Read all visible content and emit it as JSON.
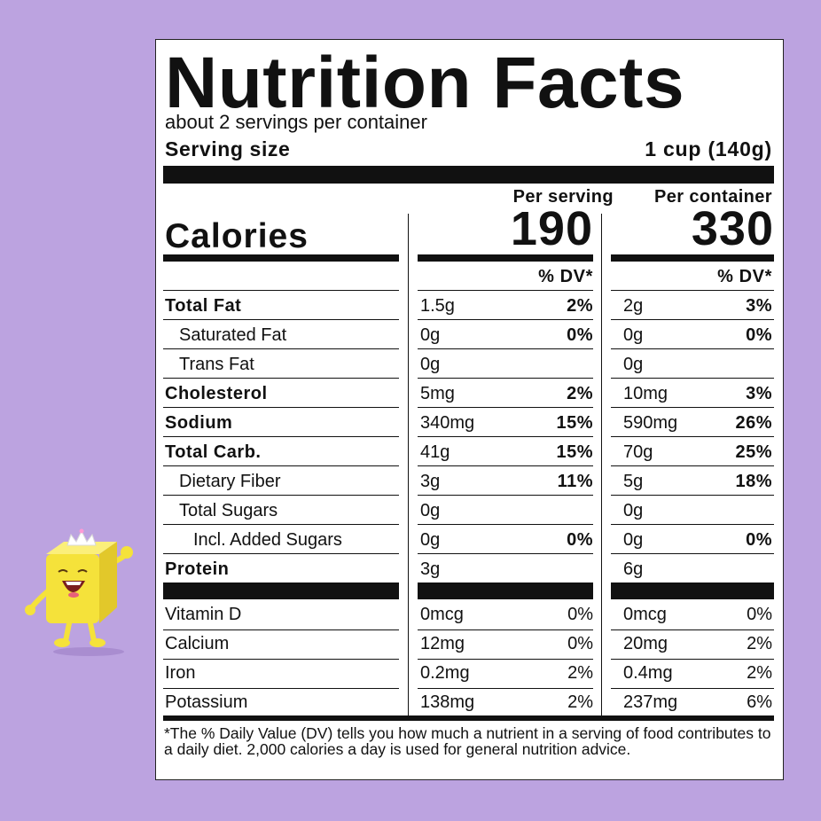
{
  "title": "Nutrition Facts",
  "servings_per_container": "about 2 servings per container",
  "serving_size": {
    "label": "Serving size",
    "value": "1 cup (140g)"
  },
  "columns": {
    "per_serving": "Per serving",
    "per_container": "Per container"
  },
  "calories": {
    "label": "Calories",
    "per_serving": "190",
    "per_container": "330"
  },
  "dv_header": "% DV*",
  "nutrients": [
    {
      "name": "Total Fat",
      "bold": true,
      "indent": 0,
      "s_amt": "1.5g",
      "s_dv": "2%",
      "c_amt": "2g",
      "c_dv": "3%"
    },
    {
      "name": "Saturated Fat",
      "bold": false,
      "indent": 1,
      "s_amt": "0g",
      "s_dv": "0%",
      "c_amt": "0g",
      "c_dv": "0%"
    },
    {
      "name": "Trans Fat",
      "bold": false,
      "indent": 1,
      "s_amt": "0g",
      "s_dv": "",
      "c_amt": "0g",
      "c_dv": ""
    },
    {
      "name": "Cholesterol",
      "bold": true,
      "indent": 0,
      "s_amt": "5mg",
      "s_dv": "2%",
      "c_amt": "10mg",
      "c_dv": "3%"
    },
    {
      "name": "Sodium",
      "bold": true,
      "indent": 0,
      "s_amt": "340mg",
      "s_dv": "15%",
      "c_amt": "590mg",
      "c_dv": "26%"
    },
    {
      "name": "Total Carb.",
      "bold": true,
      "indent": 0,
      "s_amt": "41g",
      "s_dv": "15%",
      "c_amt": "70g",
      "c_dv": "25%"
    },
    {
      "name": "Dietary Fiber",
      "bold": false,
      "indent": 1,
      "s_amt": "3g",
      "s_dv": "11%",
      "c_amt": "5g",
      "c_dv": "18%"
    },
    {
      "name": "Total Sugars",
      "bold": false,
      "indent": 1,
      "s_amt": "0g",
      "s_dv": "",
      "c_amt": "0g",
      "c_dv": ""
    },
    {
      "name": "Incl. Added Sugars",
      "bold": false,
      "indent": 2,
      "s_amt": "0g",
      "s_dv": "0%",
      "c_amt": "0g",
      "c_dv": "0%"
    },
    {
      "name": "Protein",
      "bold": true,
      "indent": 0,
      "s_amt": "3g",
      "s_dv": "",
      "c_amt": "6g",
      "c_dv": ""
    }
  ],
  "vitamins": [
    {
      "name": "Vitamin D",
      "s_amt": "0mcg",
      "s_dv": "0%",
      "c_amt": "0mcg",
      "c_dv": "0%"
    },
    {
      "name": "Calcium",
      "s_amt": "12mg",
      "s_dv": "0%",
      "c_amt": "20mg",
      "c_dv": "2%"
    },
    {
      "name": "Iron",
      "s_amt": "0.2mg",
      "s_dv": "2%",
      "c_amt": "0.4mg",
      "c_dv": "2%"
    },
    {
      "name": "Potassium",
      "s_amt": "138mg",
      "s_dv": "2%",
      "c_amt": "237mg",
      "c_dv": "6%"
    }
  ],
  "footnote": "*The % Daily Value (DV) tells you how much a nutrient in a serving of food contributes to a daily diet. 2,000 calories a day is used for general nutrition advice.",
  "colors": {
    "background": "#bca3e0",
    "mascot_body": "#f5e23a",
    "mascot_mouth": "#7a1f1f"
  },
  "mascot_icon": "butter-cube-mascot-with-tiara"
}
